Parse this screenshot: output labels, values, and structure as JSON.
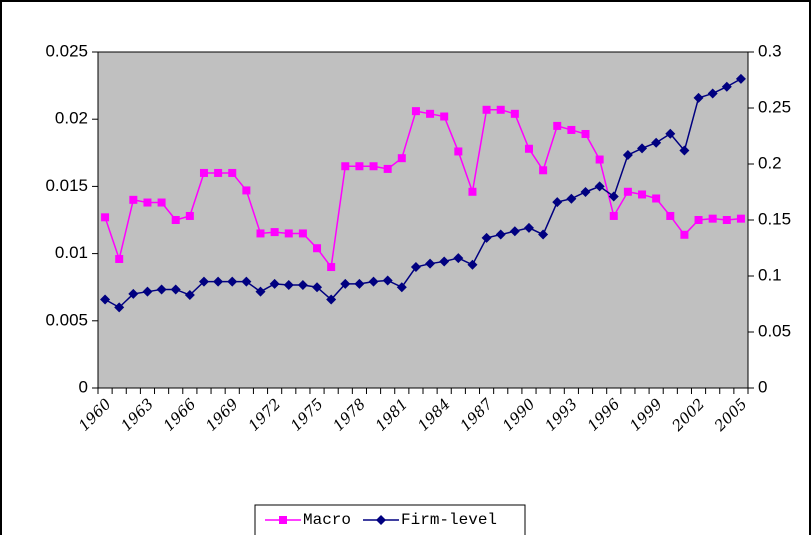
{
  "chart_data": {
    "type": "line",
    "categories": [
      "1960",
      null,
      null,
      "1963",
      null,
      null,
      "1966",
      null,
      null,
      "1969",
      null,
      null,
      "1972",
      null,
      null,
      "1975",
      null,
      null,
      "1978",
      null,
      null,
      "1981",
      null,
      null,
      "1984",
      null,
      null,
      "1987",
      null,
      null,
      "1990",
      null,
      null,
      "1993",
      null,
      null,
      "1996",
      null,
      null,
      "1999",
      null,
      null,
      "2002",
      null,
      null,
      "2005"
    ],
    "series": [
      {
        "name": "Macro",
        "color": "#ff00ff",
        "marker": "square",
        "values": [
          0.0127,
          0.0096,
          0.014,
          0.0138,
          0.0138,
          0.0125,
          0.0128,
          0.016,
          0.016,
          0.016,
          0.0147,
          0.0115,
          0.0116,
          0.0115,
          0.0115,
          0.0104,
          0.009,
          0.0165,
          0.0165,
          0.0165,
          0.0163,
          0.0171,
          0.0206,
          0.0204,
          0.0202,
          0.0176,
          0.0146,
          0.0207,
          0.0207,
          0.0204,
          0.0178,
          0.0162,
          0.0195,
          0.0192,
          0.0189,
          0.017,
          0.0128,
          0.0146,
          0.0144,
          0.0141,
          0.0128,
          0.0114,
          0.0125,
          0.0126,
          0.0125,
          0.0126
        ]
      },
      {
        "name": "Firm-level",
        "color": "#000080",
        "marker": "diamond",
        "axis": "y2",
        "values": [
          0.079,
          0.072,
          0.084,
          0.086,
          0.088,
          0.088,
          0.083,
          0.095,
          0.095,
          0.095,
          0.095,
          0.086,
          0.093,
          0.092,
          0.092,
          0.09,
          0.079,
          0.093,
          0.093,
          0.095,
          0.096,
          0.09,
          0.108,
          0.111,
          0.113,
          0.116,
          0.11,
          0.134,
          0.137,
          0.14,
          0.143,
          0.137,
          0.166,
          0.169,
          0.175,
          0.18,
          0.171,
          0.208,
          0.214,
          0.219,
          0.227,
          0.212,
          0.259,
          0.263,
          0.269,
          0.276
        ]
      }
    ],
    "ylim": [
      0,
      0.025
    ],
    "yticks": [
      0,
      0.005,
      0.01,
      0.015,
      0.02,
      0.025
    ],
    "y2lim": [
      0,
      0.3
    ],
    "y2ticks": [
      0,
      0.05,
      0.1,
      0.15,
      0.2,
      0.25,
      0.3
    ],
    "legend": "bottom",
    "plot_background": "#c0c0c0"
  }
}
